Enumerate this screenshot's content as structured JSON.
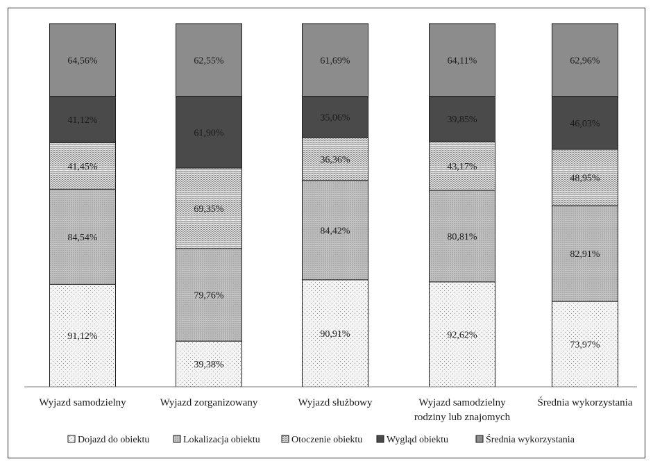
{
  "chart_data": {
    "type": "bar",
    "stacked": true,
    "categories": [
      [
        "Wyjazd samodzielny"
      ],
      [
        "Wyjazd zorganizowany"
      ],
      [
        "Wyjazd służbowy"
      ],
      [
        "Wyjazd samodzielny",
        "rodziny lub znajomych"
      ],
      [
        "Średnia wykorzystania"
      ]
    ],
    "series": [
      {
        "name": "Dojazd do obiektu",
        "values": [
          91.12,
          39.38,
          90.91,
          92.62,
          73.97
        ],
        "labels": [
          "91,12%",
          "39,38%",
          "90,91%",
          "92,62%",
          "73,97%"
        ],
        "color": "#f2f2f2",
        "pattern": "dots"
      },
      {
        "name": "Lokalizacja obiektu",
        "values": [
          84.54,
          79.76,
          84.42,
          80.81,
          82.91
        ],
        "labels": [
          "84,54%",
          "79,76%",
          "84,42%",
          "80,81%",
          "82,91%"
        ],
        "color": "#b5b5b5",
        "pattern": "fine"
      },
      {
        "name": "Otoczenie obiektu",
        "values": [
          41.45,
          69.35,
          36.36,
          43.17,
          48.95
        ],
        "labels": [
          "41,45%",
          "69,35%",
          "36,36%",
          "43,17%",
          "48,95%"
        ],
        "color": "#e6e6e6",
        "pattern": "wave"
      },
      {
        "name": "Wygląd obiektu",
        "values": [
          41.12,
          61.9,
          35.06,
          39.85,
          46.03
        ],
        "labels": [
          "41,12%",
          "61,90%",
          "35,06%",
          "39,85%",
          "46,03%"
        ],
        "color": "#4a4a4a",
        "pattern": "solid"
      },
      {
        "name": "Średnia wykorzystania",
        "values": [
          64.56,
          62.55,
          61.69,
          64.11,
          62.96
        ],
        "labels": [
          "64,56%",
          "62,55%",
          "61,69%",
          "64,11%",
          "62,96%"
        ],
        "color": "#8c8c8c",
        "pattern": "solid"
      }
    ],
    "legend_position": "bottom",
    "grid": false
  }
}
